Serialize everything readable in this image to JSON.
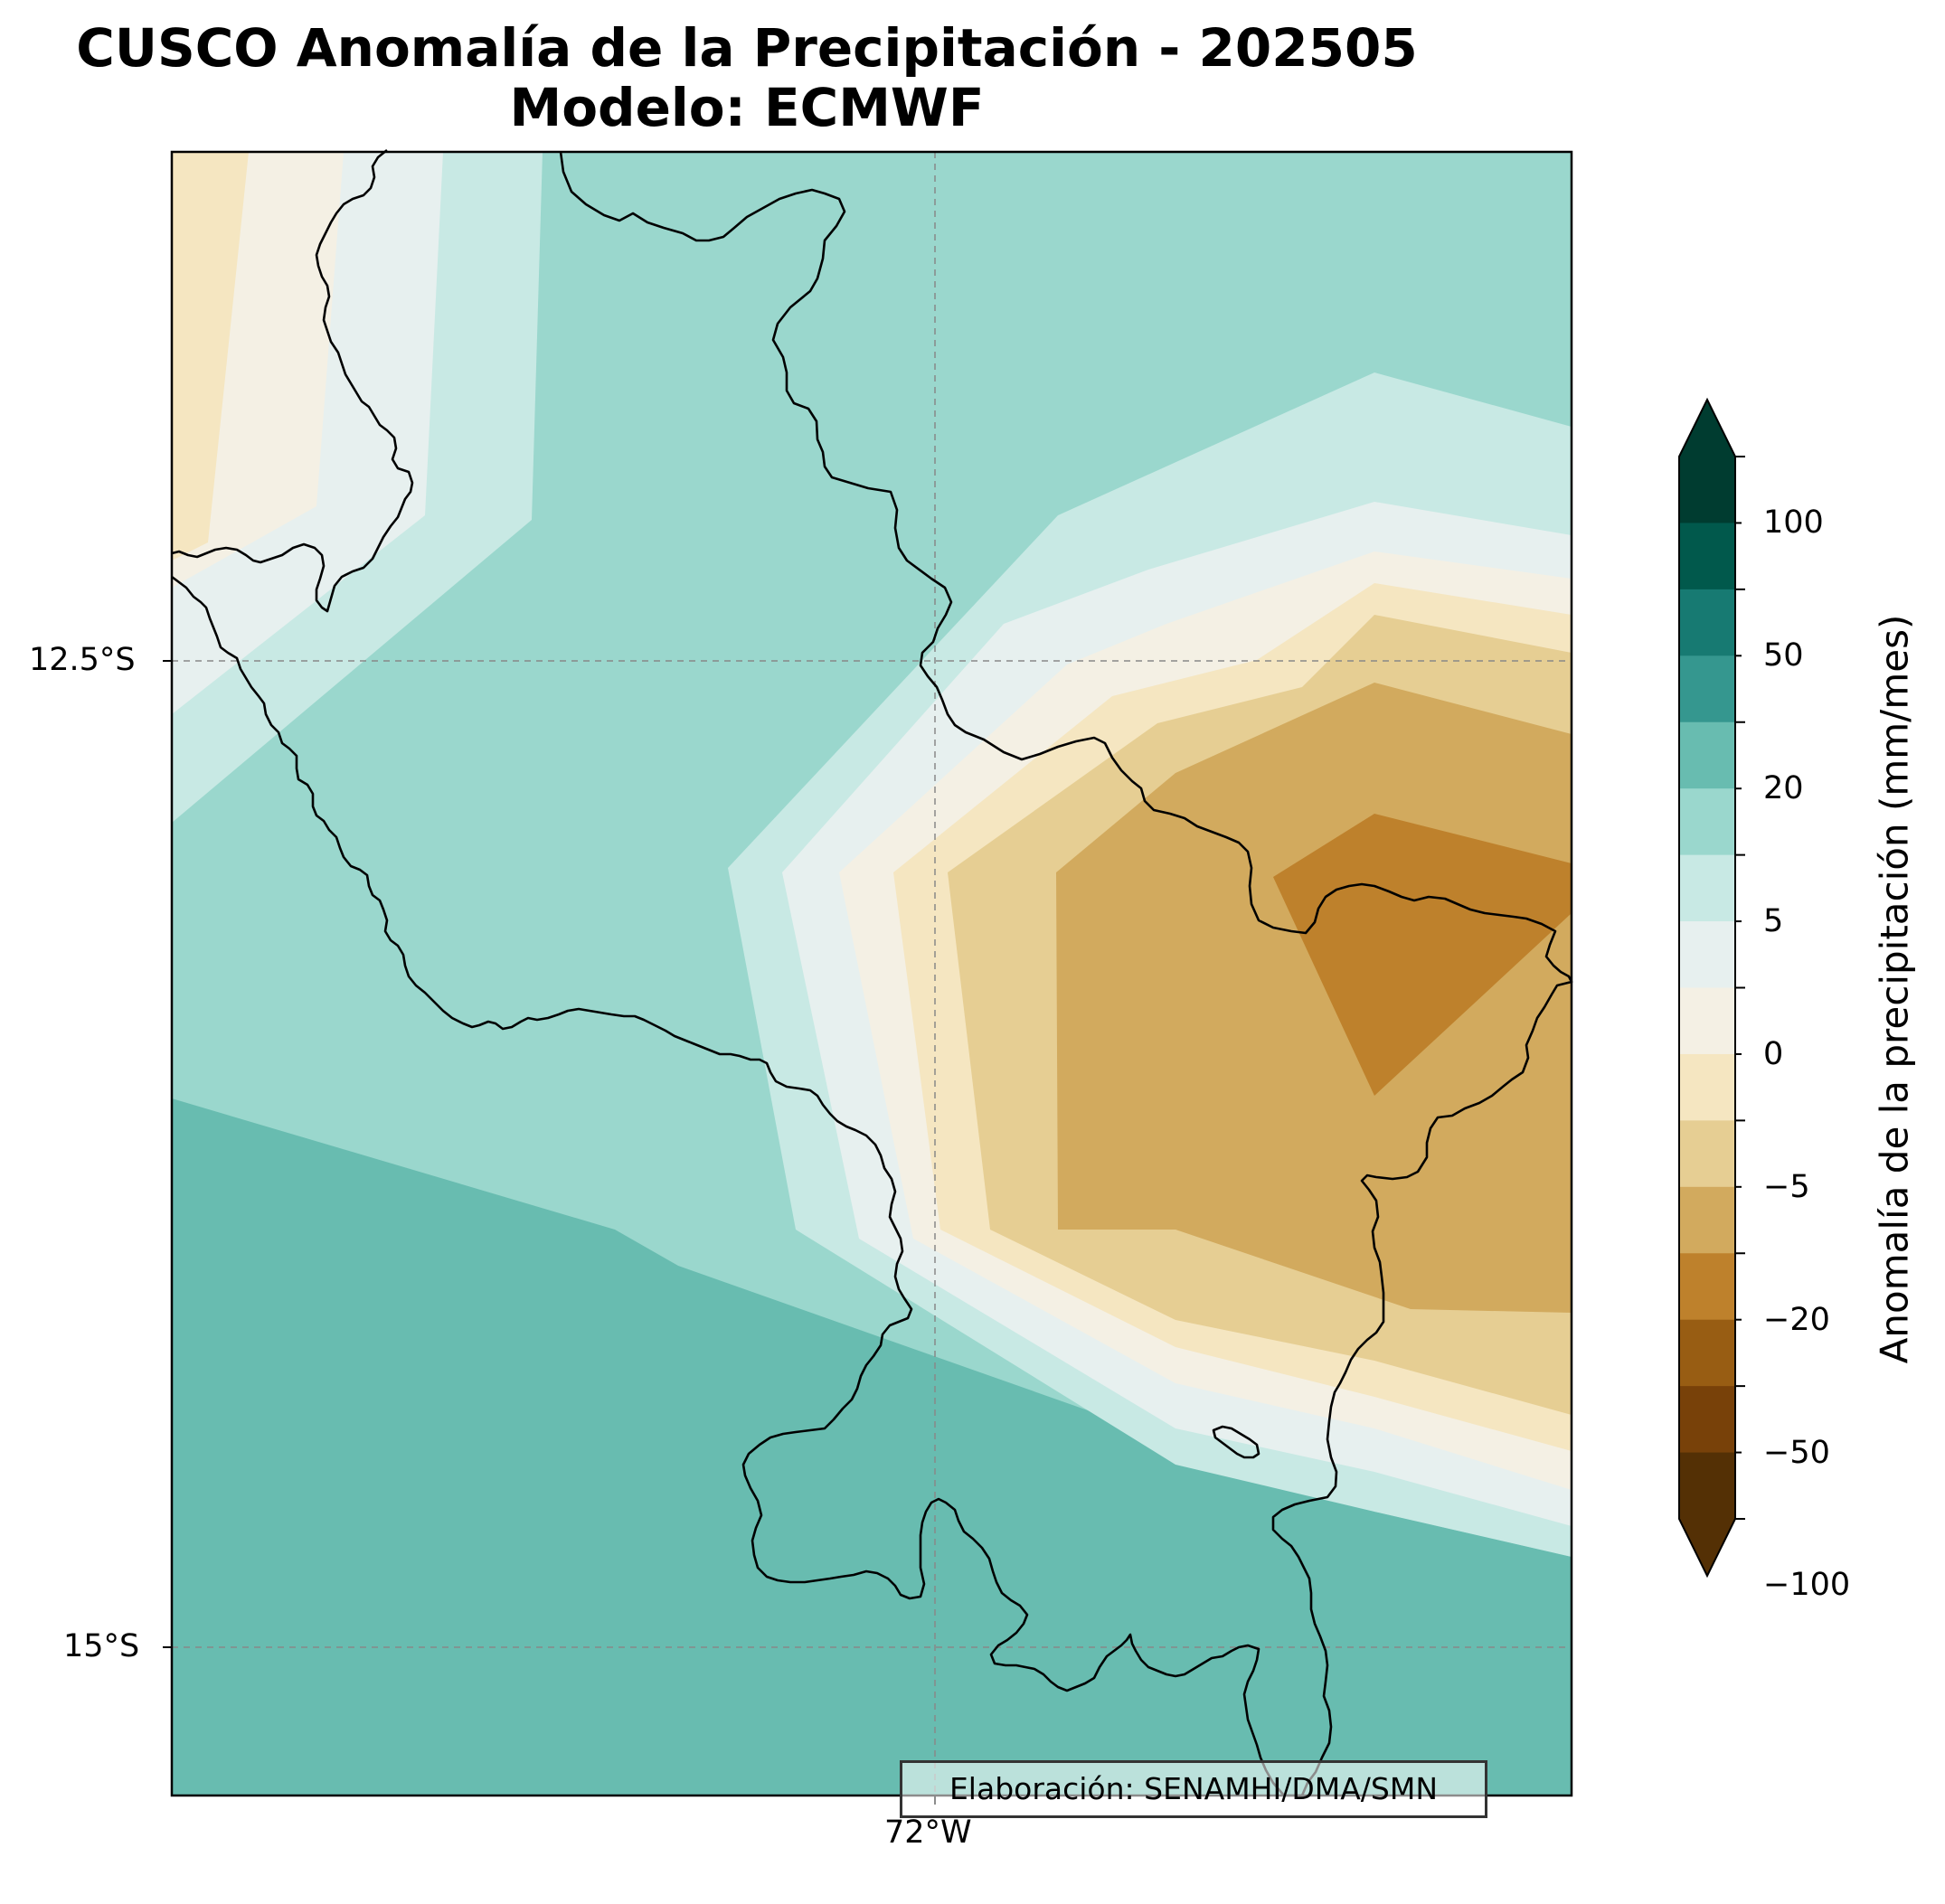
{
  "title": {
    "line1": "CUSCO Anomalía de la Precipitación - 202505",
    "line2": "Modelo: ECMWF"
  },
  "map": {
    "lat_labels": [
      "12.5°S",
      "15°S"
    ],
    "lon_labels": [
      "72°W"
    ],
    "gridlines": true,
    "region_outline": "Cusco department boundary",
    "credit": "Elaboración: SENAMHI/DMA/SMN"
  },
  "colorbar": {
    "label": "Anomalía de la precipitación (mm/mes)",
    "tick_labels": [
      "100",
      "50",
      "20",
      "5",
      "0",
      "−5",
      "−20",
      "−50",
      "−100"
    ],
    "bins_top_to_bottom": [
      "#003c30",
      "#01594c",
      "#177a72",
      "#35978f",
      "#68bcb0",
      "#9ad7cd",
      "#c8e9e4",
      "#e7f0ef",
      "#f4f0e4",
      "#f5e6c1",
      "#e6ce93",
      "#d2aa5e",
      "#be812c",
      "#985d13",
      "#784109",
      "#543005"
    ],
    "extend": "both"
  },
  "colors": {
    "land_background": "#9ad7cd",
    "south_band": "#68bcb0"
  }
}
